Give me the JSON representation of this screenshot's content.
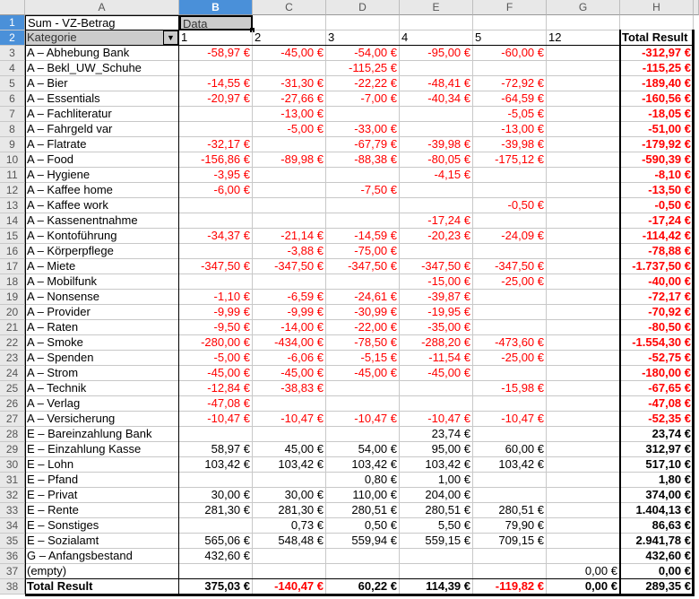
{
  "columns": [
    "A",
    "B",
    "C",
    "D",
    "E",
    "F",
    "G",
    "H"
  ],
  "selected_cell": "B1",
  "pivot": {
    "title": "Sum - VZ-Betrag",
    "data_field": "Data",
    "row_field": "Kategorie",
    "column_values": [
      "1",
      "2",
      "3",
      "4",
      "5",
      "12"
    ],
    "total_header": "Total Result",
    "rows": [
      [
        "A – Abhebung Bank",
        "-58,97 €",
        "-45,00 €",
        "-54,00 €",
        "-95,00 €",
        "-60,00 €",
        "",
        "-312,97 €"
      ],
      [
        "A – Bekl_UW_Schuhe",
        "",
        "",
        "-115,25 €",
        "",
        "",
        "",
        "-115,25 €"
      ],
      [
        "A – Bier",
        "-14,55 €",
        "-31,30 €",
        "-22,22 €",
        "-48,41 €",
        "-72,92 €",
        "",
        "-189,40 €"
      ],
      [
        "A – Essentials",
        "-20,97 €",
        "-27,66 €",
        "-7,00 €",
        "-40,34 €",
        "-64,59 €",
        "",
        "-160,56 €"
      ],
      [
        "A – Fachliteratur",
        "",
        "-13,00 €",
        "",
        "",
        "-5,05 €",
        "",
        "-18,05 €"
      ],
      [
        "A – Fahrgeld var",
        "",
        "-5,00 €",
        "-33,00 €",
        "",
        "-13,00 €",
        "",
        "-51,00 €"
      ],
      [
        "A – Flatrate",
        "-32,17 €",
        "",
        "-67,79 €",
        "-39,98 €",
        "-39,98 €",
        "",
        "-179,92 €"
      ],
      [
        "A – Food",
        "-156,86 €",
        "-89,98 €",
        "-88,38 €",
        "-80,05 €",
        "-175,12 €",
        "",
        "-590,39 €"
      ],
      [
        "A – Hygiene",
        "-3,95 €",
        "",
        "",
        "-4,15 €",
        "",
        "",
        "-8,10 €"
      ],
      [
        "A – Kaffee home",
        "-6,00 €",
        "",
        "-7,50 €",
        "",
        "",
        "",
        "-13,50 €"
      ],
      [
        "A – Kaffee work",
        "",
        "",
        "",
        "",
        "-0,50 €",
        "",
        "-0,50 €"
      ],
      [
        "A – Kassenentnahme",
        "",
        "",
        "",
        "-17,24 €",
        "",
        "",
        "-17,24 €"
      ],
      [
        "A – Kontoführung",
        "-34,37 €",
        "-21,14 €",
        "-14,59 €",
        "-20,23 €",
        "-24,09 €",
        "",
        "-114,42 €"
      ],
      [
        "A – Körperpflege",
        "",
        "-3,88 €",
        "-75,00 €",
        "",
        "",
        "",
        "-78,88 €"
      ],
      [
        "A – Miete",
        "-347,50 €",
        "-347,50 €",
        "-347,50 €",
        "-347,50 €",
        "-347,50 €",
        "",
        "-1.737,50 €"
      ],
      [
        "A – Mobilfunk",
        "",
        "",
        "",
        "-15,00 €",
        "-25,00 €",
        "",
        "-40,00 €"
      ],
      [
        "A – Nonsense",
        "-1,10 €",
        "-6,59 €",
        "-24,61 €",
        "-39,87 €",
        "",
        "",
        "-72,17 €"
      ],
      [
        "A – Provider",
        "-9,99 €",
        "-9,99 €",
        "-30,99 €",
        "-19,95 €",
        "",
        "",
        "-70,92 €"
      ],
      [
        "A – Raten",
        "-9,50 €",
        "-14,00 €",
        "-22,00 €",
        "-35,00 €",
        "",
        "",
        "-80,50 €"
      ],
      [
        "A – Smoke",
        "-280,00 €",
        "-434,00 €",
        "-78,50 €",
        "-288,20 €",
        "-473,60 €",
        "",
        "-1.554,30 €"
      ],
      [
        "A – Spenden",
        "-5,00 €",
        "-6,06 €",
        "-5,15 €",
        "-11,54 €",
        "-25,00 €",
        "",
        "-52,75 €"
      ],
      [
        "A – Strom",
        "-45,00 €",
        "-45,00 €",
        "-45,00 €",
        "-45,00 €",
        "",
        "",
        "-180,00 €"
      ],
      [
        "A – Technik",
        "-12,84 €",
        "-38,83 €",
        "",
        "",
        "-15,98 €",
        "",
        "-67,65 €"
      ],
      [
        "A – Verlag",
        "-47,08 €",
        "",
        "",
        "",
        "",
        "",
        "-47,08 €"
      ],
      [
        "A – Versicherung",
        "-10,47 €",
        "-10,47 €",
        "-10,47 €",
        "-10,47 €",
        "-10,47 €",
        "",
        "-52,35 €"
      ],
      [
        "E – Bareinzahlung Bank",
        "",
        "",
        "",
        "23,74 €",
        "",
        "",
        "23,74 €"
      ],
      [
        "E – Einzahlung Kasse",
        "58,97 €",
        "45,00 €",
        "54,00 €",
        "95,00 €",
        "60,00 €",
        "",
        "312,97 €"
      ],
      [
        "E – Lohn",
        "103,42 €",
        "103,42 €",
        "103,42 €",
        "103,42 €",
        "103,42 €",
        "",
        "517,10 €"
      ],
      [
        "E – Pfand",
        "",
        "",
        "0,80 €",
        "1,00 €",
        "",
        "",
        "1,80 €"
      ],
      [
        "E – Privat",
        "30,00 €",
        "30,00 €",
        "110,00 €",
        "204,00 €",
        "",
        "",
        "374,00 €"
      ],
      [
        "E – Rente",
        "281,30 €",
        "281,30 €",
        "280,51 €",
        "280,51 €",
        "280,51 €",
        "",
        "1.404,13 €"
      ],
      [
        "E – Sonstiges",
        "",
        "0,73 €",
        "0,50 €",
        "5,50 €",
        "79,90 €",
        "",
        "86,63 €"
      ],
      [
        "E – Sozialamt",
        "565,06 €",
        "548,48 €",
        "559,94 €",
        "559,15 €",
        "709,15 €",
        "",
        "2.941,78 €"
      ],
      [
        "G – Anfangsbestand",
        "432,60 €",
        "",
        "",
        "",
        "",
        "",
        "432,60 €"
      ],
      [
        "(empty)",
        "",
        "",
        "",
        "",
        "",
        "0,00 €",
        "0,00 €"
      ]
    ],
    "total_row": [
      "Total Result",
      "375,03 €",
      "-140,47 €",
      "60,22 €",
      "114,39 €",
      "-119,82 €",
      "0,00 €",
      "289,35 €"
    ]
  },
  "colors": {
    "negative": "#ff0000",
    "header_selected": "#4a90d9",
    "field_button": "#cccccc"
  }
}
